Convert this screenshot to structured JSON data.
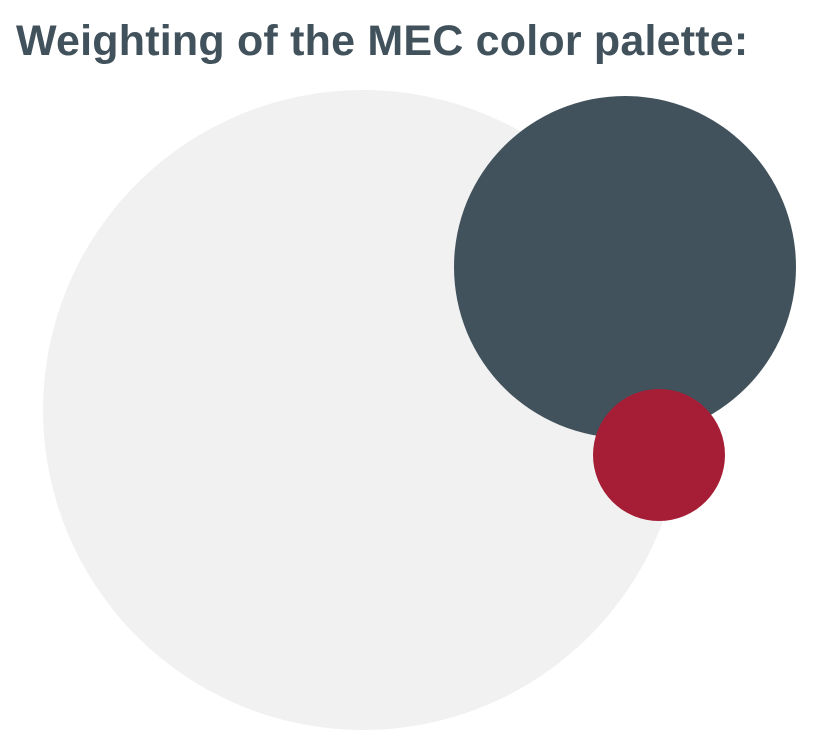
{
  "title": "Weighting of the MEC color palette:",
  "colors": {
    "title_text": "#42525c",
    "background": "#ffffff"
  },
  "palette": [
    {
      "name": "light-gray",
      "color": "#f0f1f0"
    },
    {
      "name": "slate",
      "color": "#42525c"
    },
    {
      "name": "crimson",
      "color": "#a61e36"
    }
  ]
}
